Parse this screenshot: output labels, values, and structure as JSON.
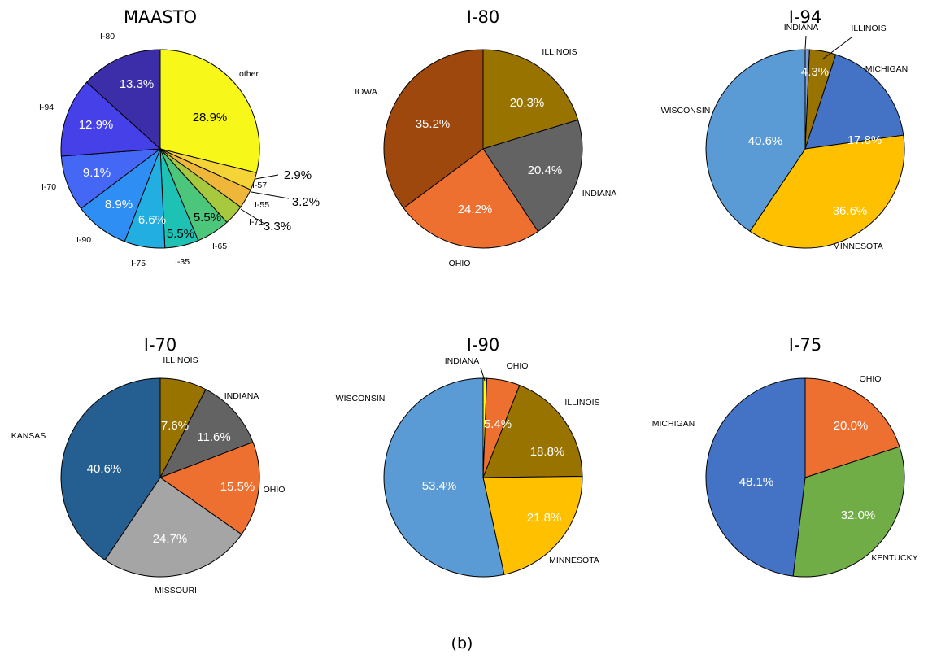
{
  "caption": "(b)",
  "chart_data": [
    {
      "type": "pie",
      "title": "MAASTO",
      "slices": [
        {
          "label": "other",
          "value": 28.9,
          "pct": "28.9%",
          "color": "#f7f719",
          "pct_color": "#000000"
        },
        {
          "label": "I-57",
          "value": 2.9,
          "pct": "2.9%",
          "color": "#f5d437",
          "pct_color": "#000000"
        },
        {
          "label": "I-55",
          "value": 3.2,
          "pct": "3.2%",
          "color": "#efb73a",
          "pct_color": "#000000"
        },
        {
          "label": "I-71",
          "value": 3.3,
          "pct": "3.3%",
          "color": "#a6c93e",
          "pct_color": "#000000"
        },
        {
          "label": "I-65",
          "value": 5.5,
          "pct": "5.5%",
          "color": "#4bc67b",
          "pct_color": "#000000"
        },
        {
          "label": "I-35",
          "value": 5.5,
          "pct": "5.5%",
          "color": "#1ec2b5",
          "pct_color": "#000000"
        },
        {
          "label": "I-75",
          "value": 6.6,
          "pct": "6.6%",
          "color": "#22aee0",
          "pct_color": "#ffffff"
        },
        {
          "label": "I-90",
          "value": 8.9,
          "pct": "8.9%",
          "color": "#2f8ef3",
          "pct_color": "#ffffff"
        },
        {
          "label": "I-70",
          "value": 9.1,
          "pct": "9.1%",
          "color": "#4467f6",
          "pct_color": "#ffffff"
        },
        {
          "label": "I-94",
          "value": 12.9,
          "pct": "12.9%",
          "color": "#4540e8",
          "pct_color": "#ffffff"
        },
        {
          "label": "I-80",
          "value": 13.3,
          "pct": "13.3%",
          "color": "#3b2ea8",
          "pct_color": "#ffffff"
        }
      ]
    },
    {
      "type": "pie",
      "title": "I-80",
      "slices": [
        {
          "label": "ILLINOIS",
          "value": 20.3,
          "pct": "20.3%",
          "color": "#997300",
          "pct_color": "#ffffff"
        },
        {
          "label": "INDIANA",
          "value": 20.4,
          "pct": "20.4%",
          "color": "#636363",
          "pct_color": "#ffffff"
        },
        {
          "label": "OHIO",
          "value": 24.2,
          "pct": "24.2%",
          "color": "#ed7031",
          "pct_color": "#ffffff"
        },
        {
          "label": "IOWA",
          "value": 35.2,
          "pct": "35.2%",
          "color": "#9e480e",
          "pct_color": "#ffffff"
        }
      ]
    },
    {
      "type": "pie",
      "title": "I-94",
      "slices": [
        {
          "label": "INDIANA",
          "value": 0.7,
          "pct": "",
          "color": "#7f9bd4",
          "pct_color": "#ffffff"
        },
        {
          "label": "ILLINOIS",
          "value": 4.3,
          "pct": "4.3%",
          "color": "#997300",
          "pct_color": "#ffffff"
        },
        {
          "label": "MICHIGAN",
          "value": 17.8,
          "pct": "17.8%",
          "color": "#4472c4",
          "pct_color": "#ffffff"
        },
        {
          "label": "MINNESOTA",
          "value": 36.6,
          "pct": "36.6%",
          "color": "#ffc000",
          "pct_color": "#ffffff"
        },
        {
          "label": "WISCONSIN",
          "value": 40.6,
          "pct": "40.6%",
          "color": "#5b9bd5",
          "pct_color": "#ffffff"
        }
      ]
    },
    {
      "type": "pie",
      "title": "I-70",
      "slices": [
        {
          "label": "ILLINOIS",
          "value": 7.6,
          "pct": "7.6%",
          "color": "#997300",
          "pct_color": "#ffffff"
        },
        {
          "label": "INDIANA",
          "value": 11.6,
          "pct": "11.6%",
          "color": "#636363",
          "pct_color": "#ffffff"
        },
        {
          "label": "OHIO",
          "value": 15.5,
          "pct": "15.5%",
          "color": "#ed7031",
          "pct_color": "#ffffff"
        },
        {
          "label": "MISSOURI",
          "value": 24.7,
          "pct": "24.7%",
          "color": "#a5a5a5",
          "pct_color": "#ffffff"
        },
        {
          "label": "KANSAS",
          "value": 40.6,
          "pct": "40.6%",
          "color": "#255e91",
          "pct_color": "#ffffff"
        }
      ]
    },
    {
      "type": "pie",
      "title": "I-90",
      "slices": [
        {
          "label": "INDIANA",
          "value": 0.6,
          "pct": "",
          "color": "#ffff00",
          "pct_color": "#ffffff"
        },
        {
          "label": "OHIO",
          "value": 5.4,
          "pct": "5.4%",
          "color": "#ed7031",
          "pct_color": "#ffffff"
        },
        {
          "label": "ILLINOIS",
          "value": 18.8,
          "pct": "18.8%",
          "color": "#997300",
          "pct_color": "#ffffff"
        },
        {
          "label": "MINNESOTA",
          "value": 21.8,
          "pct": "21.8%",
          "color": "#ffc000",
          "pct_color": "#ffffff"
        },
        {
          "label": "WISCONSIN",
          "value": 53.4,
          "pct": "53.4%",
          "color": "#5b9bd5",
          "pct_color": "#ffffff"
        }
      ]
    },
    {
      "type": "pie",
      "title": "I-75",
      "slices": [
        {
          "label": "OHIO",
          "value": 20.0,
          "pct": "20.0%",
          "color": "#ed7031",
          "pct_color": "#ffffff"
        },
        {
          "label": "KENTUCKY",
          "value": 32.0,
          "pct": "32.0%",
          "color": "#70ad47",
          "pct_color": "#ffffff"
        },
        {
          "label": "MICHIGAN",
          "value": 48.1,
          "pct": "48.1%",
          "color": "#4472c4",
          "pct_color": "#ffffff"
        }
      ]
    }
  ]
}
